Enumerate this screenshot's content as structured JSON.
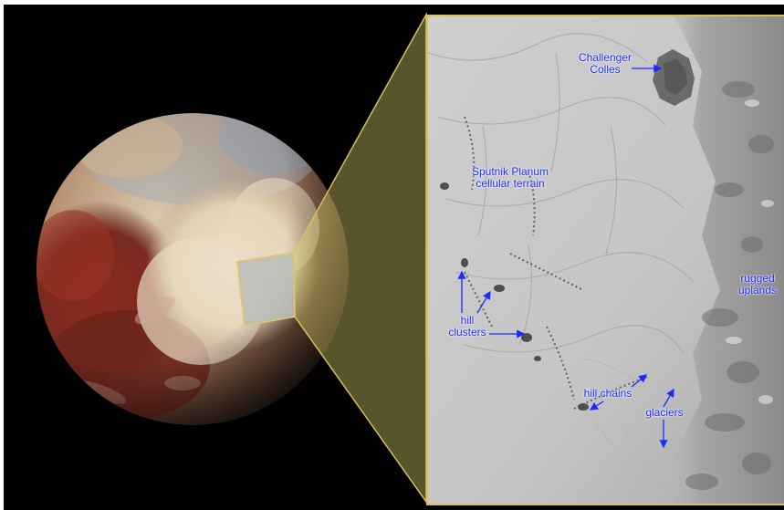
{
  "labels": {
    "challenger_line1": "Challenger",
    "challenger_line2": "Colles",
    "sputnik_line1": "Sputnik Planum",
    "sputnik_line2": "cellular terrain",
    "rugged_line1": "rugged",
    "rugged_line2": "uplands",
    "hill_clusters_line1": "hill",
    "hill_clusters_line2": "clusters",
    "hill_chains": "hill chains",
    "glaciers": "glaciers"
  },
  "colors": {
    "background": "#000000",
    "label_text": "#1a2bff",
    "zoom_outline": "#d8c05a"
  }
}
